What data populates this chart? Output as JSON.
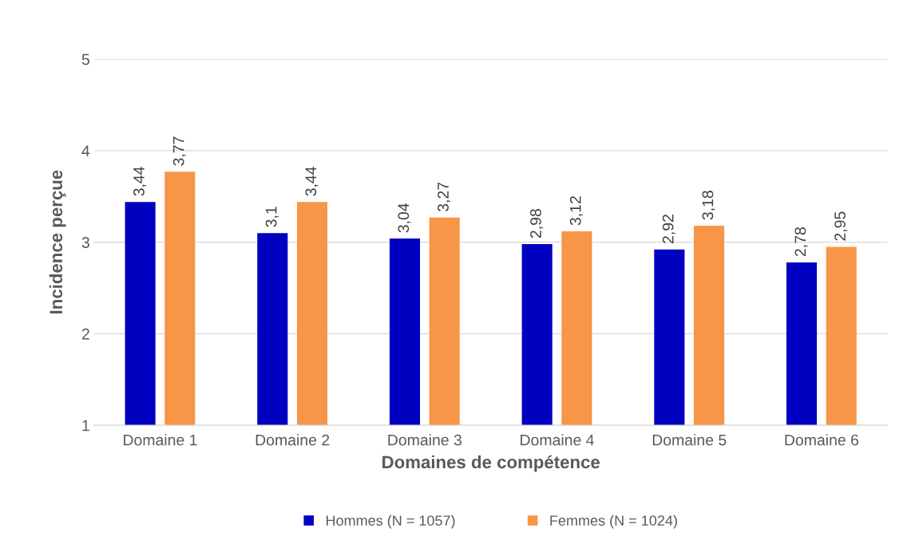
{
  "chart_data": {
    "type": "bar",
    "xlabel": "Domaines de compétence",
    "ylabel": "Incidence perçue",
    "categories": [
      "Domaine 1",
      "Domaine 2",
      "Domaine 3",
      "Domaine 4",
      "Domaine 5",
      "Domaine 6"
    ],
    "series": [
      {
        "name": "Hommes (N = 1057)",
        "color": "#0000c0",
        "values": [
          3.44,
          3.1,
          3.04,
          2.98,
          2.92,
          2.78
        ],
        "value_labels": [
          "3,44",
          "3,1",
          "3,04",
          "2,98",
          "2,92",
          "2,78"
        ]
      },
      {
        "name": "Femmes (N = 1024)",
        "color": "#f79646",
        "values": [
          3.77,
          3.44,
          3.27,
          3.12,
          3.18,
          2.95
        ],
        "value_labels": [
          "3,77",
          "3,44",
          "3,27",
          "3,12",
          "3,18",
          "2,95"
        ]
      }
    ],
    "ylim": [
      1,
      5
    ],
    "yticks": [
      1,
      2,
      3,
      4,
      5
    ],
    "grid": "y",
    "legend": "bottom"
  }
}
